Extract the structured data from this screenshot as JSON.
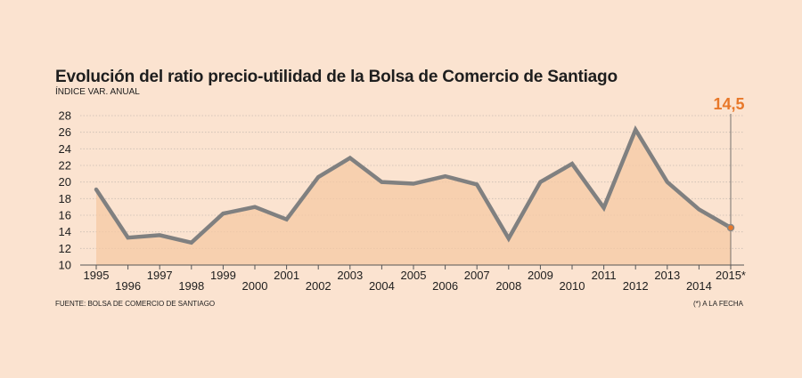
{
  "colors": {
    "background": "#fbe3d0",
    "line": "#808080",
    "area": "#f5c9a4",
    "highlight": "#e8782a",
    "grid": "#c9bdb2"
  },
  "chart_data": {
    "type": "area",
    "title": "Evolución del ratio precio-utilidad de la Bolsa de Comercio de Santiago",
    "subtitle": "ÍNDICE VAR. ANUAL",
    "xlabel": "",
    "ylabel": "",
    "x": [
      "1995",
      "1996",
      "1997",
      "1998",
      "1999",
      "2000",
      "2001",
      "2002",
      "2003",
      "2004",
      "2005",
      "2006",
      "2007",
      "2008",
      "2009",
      "2010",
      "2011",
      "2012",
      "2013",
      "2014",
      "2015*"
    ],
    "series": [
      {
        "values": [
          19.1,
          13.3,
          13.6,
          12.7,
          16.2,
          17.0,
          15.5,
          20.6,
          22.9,
          20.0,
          19.8,
          20.7,
          19.7,
          13.2,
          20.0,
          22.2,
          16.9,
          26.3,
          20.0,
          16.7,
          14.5
        ]
      }
    ],
    "ylim": [
      10,
      28
    ],
    "yticks": [
      10,
      12,
      14,
      16,
      18,
      20,
      22,
      24,
      26,
      28
    ],
    "grid": true,
    "highlight_label": "14,5",
    "source": "FUENTE: BOLSA DE COMERCIO DE SANTIAGO",
    "note": "(*) A LA FECHA"
  }
}
